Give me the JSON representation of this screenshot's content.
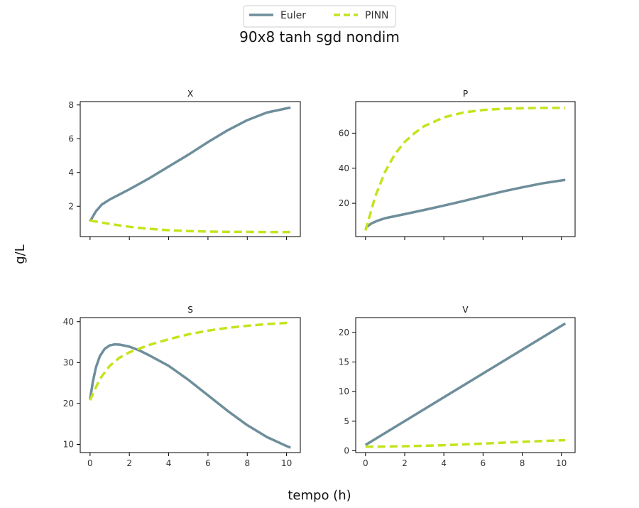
{
  "figure": {
    "title": "90x8 tanh sgd nondim",
    "xlabel": "tempo (h)",
    "ylabel": "g/L"
  },
  "legend": {
    "placement": "top-center",
    "items": [
      {
        "name": "Euler",
        "color": "#6e8e9b",
        "style": "solid"
      },
      {
        "name": "PINN",
        "color": "#c5e31d",
        "style": "dashed"
      }
    ]
  },
  "chart_data": [
    {
      "type": "line",
      "title": "X",
      "xlim": [
        -0.5,
        10.7
      ],
      "ylim": [
        0.2,
        8.2
      ],
      "xticks": [
        0,
        2,
        4,
        6,
        8,
        10
      ],
      "yticks": [
        2,
        4,
        6,
        8
      ],
      "show_x_tick_labels": false,
      "series": [
        {
          "name": "Euler",
          "x": [
            0,
            0.3,
            0.6,
            1,
            2,
            3,
            4,
            5,
            6,
            7,
            8,
            9,
            10,
            10.2
          ],
          "y": [
            1.1,
            1.7,
            2.1,
            2.4,
            3.0,
            3.65,
            4.35,
            5.05,
            5.8,
            6.5,
            7.1,
            7.55,
            7.8,
            7.85
          ]
        },
        {
          "name": "PINN",
          "x": [
            0,
            1,
            2,
            3,
            4,
            5,
            6,
            7,
            8,
            9,
            10,
            10.2
          ],
          "y": [
            1.15,
            0.95,
            0.78,
            0.66,
            0.58,
            0.53,
            0.5,
            0.48,
            0.48,
            0.47,
            0.47,
            0.47
          ]
        }
      ]
    },
    {
      "type": "line",
      "title": "P",
      "xlim": [
        -0.5,
        10.7
      ],
      "ylim": [
        1,
        78
      ],
      "xticks": [
        0,
        2,
        4,
        6,
        8,
        10
      ],
      "yticks": [
        20,
        40,
        60
      ],
      "show_x_tick_labels": false,
      "series": [
        {
          "name": "Euler",
          "x": [
            0,
            0.3,
            0.6,
            1,
            2,
            3,
            4,
            5,
            6,
            7,
            8,
            9,
            10,
            10.2
          ],
          "y": [
            6,
            8.5,
            10,
            11.5,
            13.8,
            16.2,
            18.7,
            21.3,
            24,
            26.7,
            29.1,
            31.3,
            33,
            33.4
          ]
        },
        {
          "name": "PINN",
          "x": [
            0,
            0.5,
            1,
            1.5,
            2,
            2.5,
            3,
            4,
            5,
            6,
            7,
            8,
            9,
            10,
            10.2
          ],
          "y": [
            4.5,
            24,
            38,
            48,
            55,
            60,
            64,
            69,
            71.8,
            73.2,
            73.9,
            74.2,
            74.4,
            74.4,
            74.4
          ]
        }
      ]
    },
    {
      "type": "line",
      "title": "S",
      "xlim": [
        -0.5,
        10.7
      ],
      "ylim": [
        8,
        41
      ],
      "xticks": [
        0,
        2,
        4,
        6,
        8,
        10
      ],
      "yticks": [
        10,
        20,
        30,
        40
      ],
      "show_x_tick_labels": true,
      "series": [
        {
          "name": "Euler",
          "x": [
            0,
            0.15,
            0.3,
            0.5,
            0.75,
            1,
            1.25,
            1.5,
            2,
            2.5,
            3,
            4,
            5,
            6,
            7,
            8,
            9,
            10,
            10.2
          ],
          "y": [
            21,
            25.5,
            28.8,
            31.6,
            33.4,
            34.2,
            34.45,
            34.4,
            33.9,
            33,
            31.8,
            29.2,
            25.8,
            22,
            18.2,
            14.7,
            11.8,
            9.6,
            9.2
          ]
        },
        {
          "name": "PINN",
          "x": [
            0,
            0.25,
            0.5,
            1,
            1.5,
            2,
            3,
            4,
            5,
            6,
            7,
            8,
            9,
            10,
            10.2
          ],
          "y": [
            20.8,
            23.5,
            26,
            29.2,
            31.2,
            32.5,
            34.3,
            35.7,
            36.9,
            37.8,
            38.5,
            39,
            39.4,
            39.7,
            39.7
          ]
        }
      ]
    },
    {
      "type": "line",
      "title": "V",
      "xlim": [
        -0.5,
        10.7
      ],
      "ylim": [
        -0.3,
        22.5
      ],
      "xticks": [
        0,
        2,
        4,
        6,
        8,
        10
      ],
      "yticks": [
        0,
        5,
        10,
        15,
        20
      ],
      "show_x_tick_labels": true,
      "series": [
        {
          "name": "Euler",
          "x": [
            0,
            10.2
          ],
          "y": [
            1.0,
            21.5
          ]
        },
        {
          "name": "PINN",
          "x": [
            0,
            1,
            2,
            3,
            4,
            5,
            6,
            7,
            8,
            9,
            10,
            10.2
          ],
          "y": [
            0.7,
            0.72,
            0.78,
            0.85,
            0.95,
            1.08,
            1.22,
            1.37,
            1.52,
            1.66,
            1.78,
            1.8
          ]
        }
      ]
    }
  ]
}
